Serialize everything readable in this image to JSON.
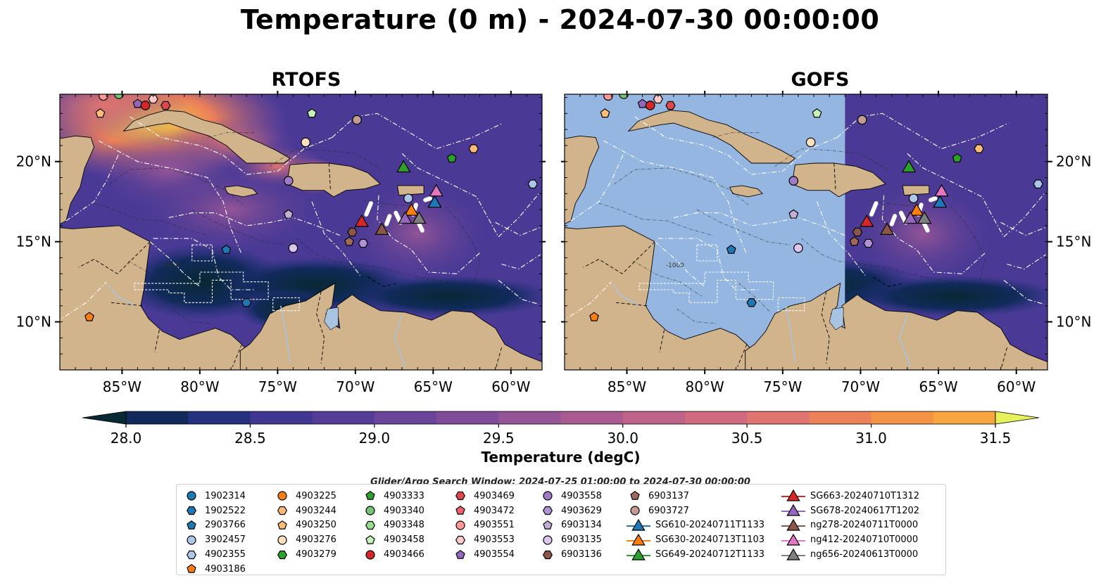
{
  "title": "Temperature (0 m) - 2024-07-30 00:00:00",
  "panels": [
    {
      "title": "RTOFS",
      "model_extent_lon": [
        -89,
        -58
      ]
    },
    {
      "title": "GOFS",
      "model_extent_lon": [
        -71,
        -58
      ]
    }
  ],
  "map": {
    "lon_range": [
      -89,
      -58
    ],
    "lat_range": [
      7,
      24.2
    ],
    "lon_ticks": [
      -85,
      -80,
      -75,
      -70,
      -65,
      -60
    ],
    "lon_tick_labels": [
      "85°W",
      "80°W",
      "75°W",
      "70°W",
      "65°W",
      "60°W"
    ],
    "lat_ticks": [
      10,
      15,
      20
    ],
    "lat_tick_labels": [
      "10°N",
      "15°N",
      "20°N"
    ],
    "bathymetry_label": "-1000",
    "colors": {
      "land": "#d2b48c",
      "no_data": "#95b6e0",
      "boundary": "#ffffff",
      "river": "#a8c4e0",
      "glider_track": "#ffffff"
    }
  },
  "colorbar": {
    "label": "Temperature (degC)",
    "min": 28.0,
    "max": 31.5,
    "step": 0.25,
    "ticks": [
      28.0,
      28.5,
      29.0,
      29.5,
      30.0,
      30.5,
      31.0,
      31.5
    ],
    "tick_labels": [
      "28.0",
      "28.5",
      "29.0",
      "29.5",
      "30.0",
      "30.5",
      "31.0",
      "31.5"
    ],
    "colormap": [
      "#082834",
      "#112a5b",
      "#25317e",
      "#3f3792",
      "#543d97",
      "#6a4599",
      "#7f4c9a",
      "#945496",
      "#a95c92",
      "#bf638b",
      "#d06a80",
      "#df7470",
      "#ec8058",
      "#f49245",
      "#f7a63f",
      "#f5bf41",
      "#f0d348",
      "#e6f15c"
    ],
    "extend": "both"
  },
  "legend": {
    "search_window": "Glider/Argo Search Window: 2024-07-25 01:00:00 to 2024-07-30 00:00:00",
    "items": [
      {
        "label": "1902314",
        "marker": "circle",
        "color": "#1f77b4"
      },
      {
        "label": "1902522",
        "marker": "hexagon",
        "color": "#1f77b4"
      },
      {
        "label": "2903766",
        "marker": "pentagon",
        "color": "#1f77b4"
      },
      {
        "label": "3902457",
        "marker": "circle",
        "color": "#aec7e8"
      },
      {
        "label": "4902355",
        "marker": "hexagon",
        "color": "#aec7e8"
      },
      {
        "label": "4903186",
        "marker": "pentagon",
        "color": "#ff7f0e"
      },
      {
        "label": "4903225",
        "marker": "circle",
        "color": "#ff7f0e"
      },
      {
        "label": "4903244",
        "marker": "hexagon",
        "color": "#ffbb78"
      },
      {
        "label": "4903250",
        "marker": "pentagon",
        "color": "#ffbb78"
      },
      {
        "label": "4903276",
        "marker": "circle",
        "color": "#ffe1c2"
      },
      {
        "label": "4903279",
        "marker": "hexagon",
        "color": "#2ca02c"
      },
      {
        "label": "4903333",
        "marker": "pentagon",
        "color": "#2ca02c"
      },
      {
        "label": "4903340",
        "marker": "circle",
        "color": "#74c476"
      },
      {
        "label": "4903348",
        "marker": "hexagon",
        "color": "#98df8a"
      },
      {
        "label": "4903458",
        "marker": "pentagon",
        "color": "#c7f2b7"
      },
      {
        "label": "4903466",
        "marker": "circle",
        "color": "#d62728"
      },
      {
        "label": "4903469",
        "marker": "hexagon",
        "color": "#e0474c"
      },
      {
        "label": "4903472",
        "marker": "pentagon",
        "color": "#f0616d"
      },
      {
        "label": "4903551",
        "marker": "circle",
        "color": "#ff9896"
      },
      {
        "label": "4903553",
        "marker": "hexagon",
        "color": "#ffc9c8"
      },
      {
        "label": "4903554",
        "marker": "pentagon",
        "color": "#9467bd"
      },
      {
        "label": "4903558",
        "marker": "circle",
        "color": "#9f7bc7"
      },
      {
        "label": "4903629",
        "marker": "hexagon",
        "color": "#b292d6"
      },
      {
        "label": "6903134",
        "marker": "pentagon",
        "color": "#c5b0d5"
      },
      {
        "label": "6903135",
        "marker": "circle",
        "color": "#dcc6ef"
      },
      {
        "label": "6903136",
        "marker": "hexagon",
        "color": "#8c564b"
      },
      {
        "label": "6903137",
        "marker": "pentagon",
        "color": "#a0685c"
      },
      {
        "label": "6903727",
        "marker": "circle",
        "color": "#c49c94"
      },
      {
        "label": "SG610-20240711T1133",
        "marker": "triangle",
        "color": "#1f77b4"
      },
      {
        "label": "SG630-20240713T1103",
        "marker": "triangle",
        "color": "#ff7f0e"
      },
      {
        "label": "SG649-20240712T1133",
        "marker": "triangle",
        "color": "#2ca02c"
      },
      {
        "label": "SG663-20240710T1312",
        "marker": "triangle",
        "color": "#d62728"
      },
      {
        "label": "SG678-20240617T1202",
        "marker": "triangle",
        "color": "#9467bd"
      },
      {
        "label": "ng278-20240711T0000",
        "marker": "triangle",
        "color": "#8c564b"
      },
      {
        "label": "ng412-20240710T0000",
        "marker": "triangle",
        "color": "#e377c2"
      },
      {
        "label": "ng656-20240613T0000",
        "marker": "triangle",
        "color": "#7f7f7f"
      }
    ],
    "columns": [
      [
        0,
        1,
        2,
        3,
        4,
        5
      ],
      [
        6,
        7,
        8,
        9,
        10
      ],
      [
        11,
        12,
        13,
        14,
        15
      ],
      [
        16,
        17,
        18,
        19,
        20
      ],
      [
        21,
        22,
        23,
        24,
        25
      ],
      [
        26,
        27,
        28,
        29,
        30
      ],
      [
        31,
        32,
        33,
        34,
        35
      ]
    ]
  },
  "map_markers": [
    {
      "id": "4903551",
      "lon": -86.2,
      "lat": 24.1
    },
    {
      "id": "4903340",
      "lon": -85.2,
      "lat": 24.2
    },
    {
      "id": "4903250",
      "lon": -86.4,
      "lat": 23.0
    },
    {
      "id": "4903553",
      "lon": -83.0,
      "lat": 23.9
    },
    {
      "id": "4903554",
      "lon": -84.0,
      "lat": 23.6
    },
    {
      "id": "4903466",
      "lon": -83.5,
      "lat": 23.5
    },
    {
      "id": "4903469",
      "lon": -82.2,
      "lat": 23.5
    },
    {
      "id": "4903458",
      "lon": -72.8,
      "lat": 23.0
    },
    {
      "id": "6903727",
      "lon": -69.9,
      "lat": 22.6
    },
    {
      "id": "4903276",
      "lon": -73.2,
      "lat": 21.2
    },
    {
      "id": "4903244",
      "lon": -62.4,
      "lat": 20.8
    },
    {
      "id": "4903333",
      "lon": -63.8,
      "lat": 20.2
    },
    {
      "id": "4902355",
      "lon": -58.6,
      "lat": 18.6
    },
    {
      "id": "4903558",
      "lon": -74.3,
      "lat": 18.8
    },
    {
      "id": "3902457",
      "lon": -66.6,
      "lat": 17.7
    },
    {
      "id": "6903134",
      "lon": -74.3,
      "lat": 16.7
    },
    {
      "id": "6903136",
      "lon": -70.2,
      "lat": 15.6
    },
    {
      "id": "6903137",
      "lon": -70.4,
      "lat": 15.0
    },
    {
      "id": "4903629",
      "lon": -69.5,
      "lat": 14.9
    },
    {
      "id": "6903135",
      "lon": -74.0,
      "lat": 14.6
    },
    {
      "id": "2903766",
      "lon": -78.3,
      "lat": 14.5
    },
    {
      "id": "1902522",
      "lon": -77.0,
      "lat": 11.2
    },
    {
      "id": "4903186",
      "lon": -87.1,
      "lat": 10.3
    },
    {
      "id": "SG649-20240712T1133",
      "lon": -66.9,
      "lat": 19.7
    },
    {
      "id": "ng412-20240710T0000",
      "lon": -64.8,
      "lat": 18.2
    },
    {
      "id": "SG630-20240713T1103",
      "lon": -66.4,
      "lat": 17.0
    },
    {
      "id": "SG610-20240711T1133",
      "lon": -64.9,
      "lat": 17.5
    },
    {
      "id": "SG663-20240710T1312",
      "lon": -69.6,
      "lat": 16.3
    },
    {
      "id": "ng278-20240711T0000",
      "lon": -68.3,
      "lat": 15.8
    },
    {
      "id": "SG678-20240617T1202",
      "lon": -66.8,
      "lat": 16.5
    },
    {
      "id": "ng656-20240613T0000",
      "lon": -65.9,
      "lat": 16.5
    }
  ]
}
